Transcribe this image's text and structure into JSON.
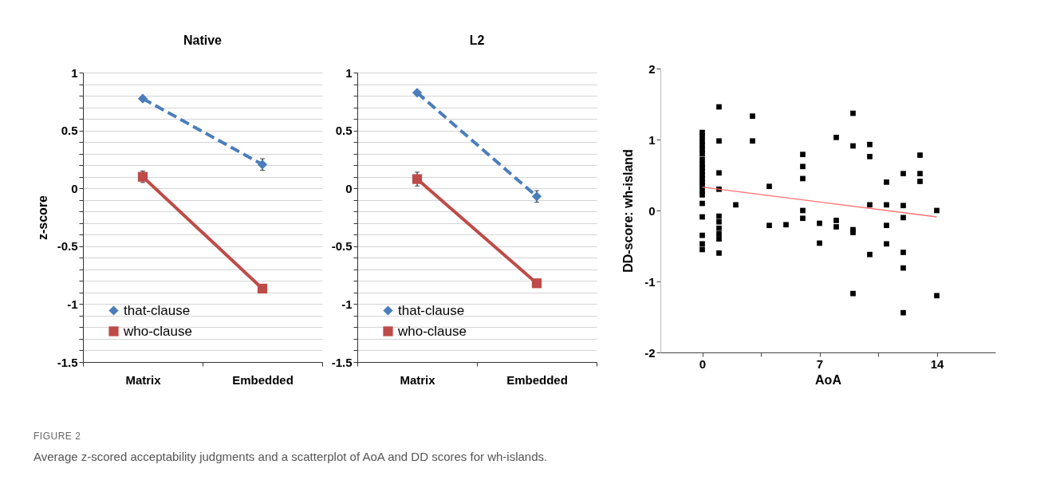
{
  "chart_data": [
    {
      "type": "line",
      "title": "Native",
      "ylabel": "z-score",
      "categories": [
        "Matrix",
        "Embedded"
      ],
      "series": [
        {
          "name": "that-clause",
          "color": "#4a7ebb",
          "values": [
            0.775,
            0.206
          ],
          "errors": [
            null,
            0.05
          ],
          "marker": "diamond",
          "line_style": "dashed"
        },
        {
          "name": "who-clause",
          "color": "#be4b48",
          "values": [
            0.1,
            -0.866
          ],
          "errors": [
            0.05,
            null
          ],
          "marker": "square",
          "line_style": "solid"
        }
      ],
      "ylim": [
        -1.5,
        1
      ],
      "yticks": [
        -1.5,
        {
          "value": -1.4,
          "label": null
        },
        {
          "value": -1.3,
          "label": null
        },
        {
          "value": -1.2,
          "label": null
        },
        {
          "value": -1.1,
          "label": null
        },
        -1,
        {
          "value": -0.9,
          "label": null
        },
        {
          "value": -0.8,
          "label": null
        },
        {
          "value": -0.7,
          "label": null
        },
        {
          "value": -0.6,
          "label": null
        },
        -0.5,
        {
          "value": -0.4,
          "label": null
        },
        {
          "value": -0.3,
          "label": null
        },
        {
          "value": -0.2,
          "label": null
        },
        {
          "value": -0.1,
          "label": null
        },
        0,
        {
          "value": 0.1,
          "label": null
        },
        {
          "value": 0.2,
          "label": null
        },
        {
          "value": 0.3,
          "label": null
        },
        {
          "value": 0.4,
          "label": null
        },
        0.5,
        {
          "value": 0.6,
          "label": null
        },
        {
          "value": 0.7,
          "label": null
        },
        {
          "value": 0.8,
          "label": null
        },
        {
          "value": 0.9,
          "label": null
        },
        1
      ],
      "grid": "y",
      "legend": "bottom left",
      "annotations": [
        "FIGURE 2",
        "Average z-scored acceptability judgments and a scatterplot of AoA and DD scores for wh-islands."
      ]
    },
    {
      "type": "line",
      "title": "L2",
      "categories": [
        "Matrix",
        "Embedded"
      ],
      "series": [
        {
          "name": "that-clause",
          "color": "#4a7ebb",
          "values": [
            0.826,
            -0.07
          ],
          "errors": [
            null,
            0.05
          ],
          "marker": "diamond",
          "line_style": "dashed"
        },
        {
          "name": "who-clause",
          "color": "#be4b48",
          "values": [
            0.08,
            -0.82
          ],
          "errors": [
            0.06,
            null
          ],
          "marker": "square",
          "line_style": "solid"
        }
      ],
      "ylim": [
        -1.5,
        1
      ],
      "yticks": [
        -1.5,
        {
          "value": -1.4,
          "label": null
        },
        {
          "value": -1.3,
          "label": null
        },
        {
          "value": -1.2,
          "label": null
        },
        {
          "value": -1.1,
          "label": null
        },
        -1,
        {
          "value": -0.9,
          "label": null
        },
        {
          "value": -0.8,
          "label": null
        },
        {
          "value": -0.7,
          "label": null
        },
        {
          "value": -0.6,
          "label": null
        },
        -0.5,
        {
          "value": -0.4,
          "label": null
        },
        {
          "value": -0.3,
          "label": null
        },
        {
          "value": -0.2,
          "label": null
        },
        {
          "value": -0.1,
          "label": null
        },
        0,
        {
          "value": 0.1,
          "label": null
        },
        {
          "value": 0.2,
          "label": null
        },
        {
          "value": 0.3,
          "label": null
        },
        {
          "value": 0.4,
          "label": null
        },
        0.5,
        {
          "value": 0.6,
          "label": null
        },
        {
          "value": 0.7,
          "label": null
        },
        {
          "value": 0.8,
          "label": null
        },
        {
          "value": 0.9,
          "label": null
        },
        1
      ],
      "grid": "y",
      "legend": "bottom left"
    },
    {
      "type": "scatter",
      "xlabel": "AoA",
      "ylabel": "DD-score: wh-island",
      "series": [
        {
          "type": "scatter",
          "color": "#000000",
          "marker": "square",
          "x": [
            0,
            0,
            0,
            0,
            0,
            0,
            0,
            0,
            0,
            0,
            0,
            0,
            0,
            0,
            0,
            0,
            0,
            0,
            0,
            0,
            0,
            1,
            1,
            1,
            1,
            1,
            1,
            1,
            1,
            1,
            1,
            2,
            3,
            3,
            4,
            4,
            5,
            6,
            6,
            6,
            6,
            6,
            7,
            7,
            8,
            8,
            8,
            9,
            9,
            9,
            9,
            9,
            10,
            10,
            10,
            10,
            11,
            11,
            11,
            11,
            12,
            12,
            12,
            12,
            12,
            12,
            13,
            13,
            13,
            14,
            14
          ],
          "values": [
            1.1,
            1.05,
            0.98,
            0.92,
            0.86,
            0.8,
            0.72,
            0.65,
            0.6,
            0.55,
            0.5,
            0.45,
            0.4,
            0.35,
            0.28,
            0.22,
            0.1,
            -0.09,
            -0.35,
            -0.47,
            -0.55,
            1.46,
            0.98,
            0.53,
            0.3,
            -0.08,
            -0.16,
            -0.25,
            -0.33,
            -0.4,
            -0.6,
            0.08,
            1.33,
            0.98,
            0.34,
            -0.21,
            -0.2,
            0.79,
            0.62,
            0.45,
            0,
            -0.11,
            -0.18,
            -0.46,
            1.03,
            -0.14,
            -0.23,
            1.37,
            0.91,
            -0.27,
            -0.31,
            -1.17,
            0.93,
            0.76,
            0.08,
            -0.62,
            0.4,
            0.08,
            -0.21,
            -0.47,
            0.52,
            0.07,
            -0.1,
            -0.59,
            -0.81,
            -1.44,
            0.78,
            0.52,
            0.41,
            0,
            -1.2
          ]
        },
        {
          "type": "line",
          "color": "#ff6f6f",
          "x": [
            0,
            14
          ],
          "values": [
            0.33,
            -0.09
          ]
        }
      ],
      "xlim": [
        -2.5,
        17.5
      ],
      "xticks": [
        0,
        {
          "value": 3.5,
          "label": null
        },
        7,
        {
          "value": 10.5,
          "label": null
        },
        14
      ],
      "ylim": [
        -2,
        2
      ],
      "yticks": [
        -2,
        -1,
        0,
        1,
        2
      ],
      "grid": false
    }
  ]
}
